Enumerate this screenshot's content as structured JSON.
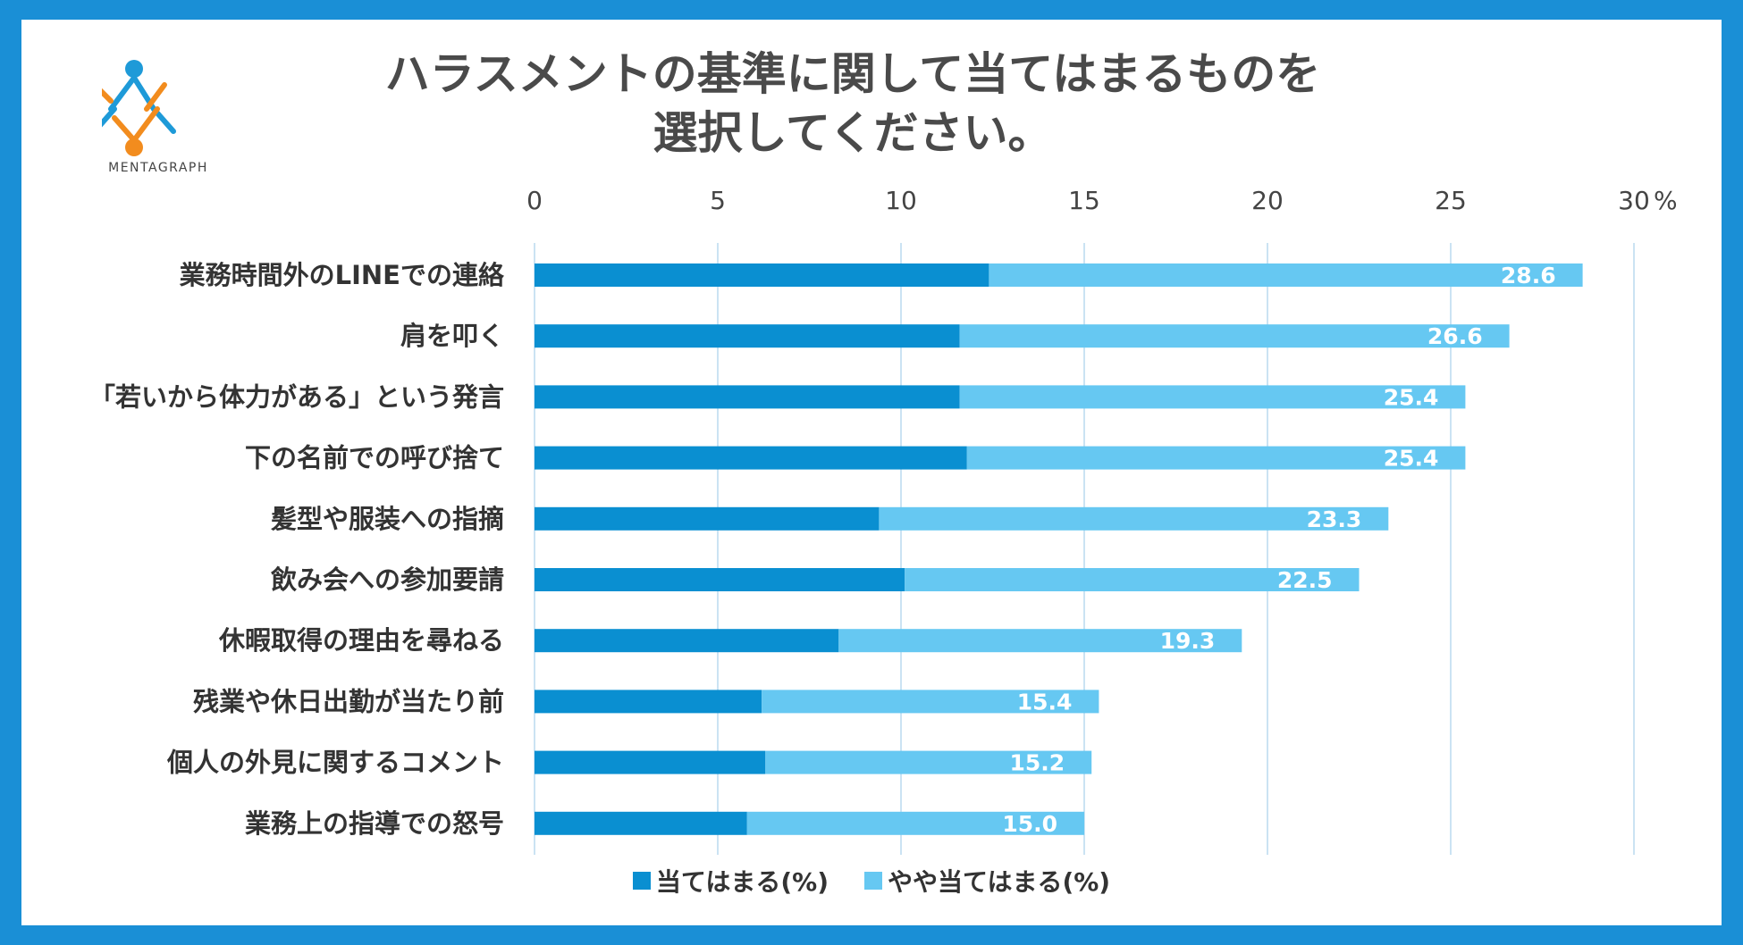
{
  "brand": {
    "name": "MENTAGRAPH"
  },
  "colors": {
    "frame": "#1a8fd6",
    "series1": "#0a8fd1",
    "series2": "#66c8f2",
    "grid": "#cbe3f3",
    "logo_blue": "#1e9ad8",
    "logo_orange": "#f28c1e"
  },
  "chart_data": {
    "type": "bar",
    "orientation": "horizontal",
    "stacked": true,
    "title_lines": [
      "ハラスメントの基準に関して当てはまるものを",
      "選択してください。"
    ],
    "xlim": [
      0,
      30
    ],
    "xticks": [
      "0",
      "5",
      "10",
      "15",
      "20",
      "25",
      "30"
    ],
    "x_unit": "%",
    "categories": [
      "業務時間外のLINEでの連絡",
      "肩を叩く",
      "「若いから体力がある」という発言",
      "下の名前での呼び捨て",
      "髪型や服装への指摘",
      "飲み会への参加要請",
      "休暇取得の理由を尋ねる",
      "残業や休日出勤が当たり前",
      "個人の外見に関するコメント",
      "業務上の指導での怒号"
    ],
    "series": [
      {
        "name": "当てはまる(%)",
        "values": [
          12.4,
          11.6,
          11.6,
          11.8,
          9.4,
          10.1,
          8.3,
          6.2,
          6.3,
          5.8
        ]
      },
      {
        "name": "やや当てはまる(%)",
        "values": [
          16.2,
          15.0,
          13.8,
          13.6,
          13.9,
          12.4,
          11.0,
          9.2,
          8.9,
          9.2
        ]
      }
    ],
    "totals": [
      "28.6",
      "26.6",
      "25.4",
      "25.4",
      "23.3",
      "22.5",
      "19.3",
      "15.4",
      "15.2",
      "15.0"
    ],
    "legend": [
      "当てはまる(%)",
      "やや当てはまる(%)"
    ],
    "legend_position": "bottom"
  }
}
